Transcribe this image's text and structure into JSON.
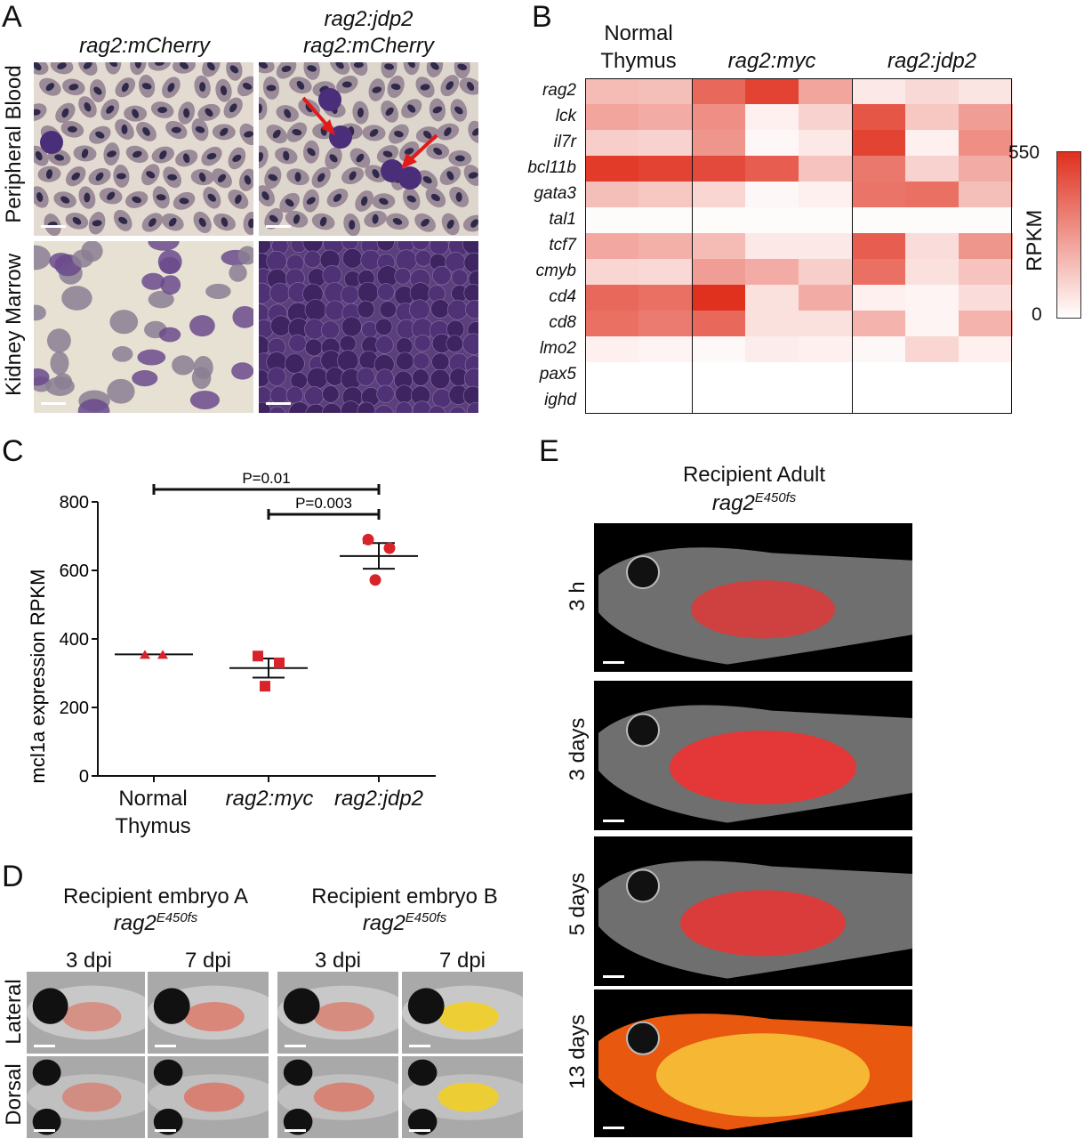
{
  "panels": {
    "A": {
      "letter": "A",
      "col_headers": [
        "rag2:mCherry",
        "rag2:jdp2",
        "rag2:mCherry"
      ],
      "row_labels": [
        "Peripheral Blood",
        "Kidney Marrow"
      ]
    },
    "B": {
      "letter": "B",
      "col_headers": [
        "Normal",
        "Thymus",
        "rag2:myc",
        "rag2:jdp2"
      ],
      "colorbar": {
        "title": "RPKM",
        "max_label": "550",
        "min_label": "0",
        "max": 550,
        "min": 0,
        "color_high": "#e0301e",
        "color_low": "#ffffff"
      }
    },
    "C": {
      "letter": "C",
      "p1": "P=0.01",
      "p2": "P=0.003",
      "xlabels": [
        "Normal",
        "Thymus",
        "rag2:myc",
        "rag2:jdp2"
      ]
    },
    "D": {
      "letter": "D",
      "group_a_title": "Recipient embryo A",
      "group_b_title": "Recipient embryo B",
      "genotype_base": "rag2",
      "genotype_sup": "E450fs",
      "timepoints": [
        "3 dpi",
        "7 dpi",
        "3 dpi",
        "7 dpi"
      ],
      "row_labels": [
        "Lateral",
        "Dorsal"
      ]
    },
    "E": {
      "letter": "E",
      "title": "Recipient Adult",
      "genotype_base": "rag2",
      "genotype_sup": "E450fs",
      "timepoints": [
        "3 h",
        "3 days",
        "5 days",
        "13 days"
      ]
    }
  },
  "heatmap": {
    "genes": [
      "rag2",
      "lck",
      "il7r",
      "bcl11b",
      "gata3",
      "tal1",
      "tcf7",
      "cmyb",
      "cd4",
      "cd8",
      "lmo2",
      "pax5",
      "ighd"
    ],
    "groups": [
      "Normal Thymus",
      "rag2:myc",
      "rag2:jdp2"
    ],
    "values": [
      [
        180,
        170,
        400,
        500,
        240,
        60,
        100,
        70
      ],
      [
        240,
        220,
        300,
        40,
        120,
        450,
        150,
        260
      ],
      [
        130,
        120,
        280,
        20,
        60,
        500,
        40,
        300
      ],
      [
        520,
        500,
        480,
        430,
        160,
        360,
        120,
        220
      ],
      [
        170,
        150,
        110,
        20,
        40,
        370,
        380,
        170
      ],
      [
        10,
        10,
        10,
        10,
        10,
        10,
        10,
        10
      ],
      [
        230,
        210,
        180,
        60,
        60,
        430,
        90,
        280
      ],
      [
        110,
        100,
        260,
        220,
        130,
        380,
        80,
        160
      ],
      [
        400,
        380,
        550,
        80,
        220,
        40,
        30,
        90
      ],
      [
        380,
        350,
        400,
        80,
        80,
        200,
        30,
        200
      ],
      [
        40,
        30,
        15,
        50,
        40,
        20,
        110,
        40
      ],
      [
        0,
        0,
        0,
        0,
        0,
        0,
        0,
        0
      ],
      [
        0,
        0,
        0,
        0,
        0,
        0,
        0,
        0
      ]
    ]
  },
  "chart_data": {
    "type": "scatter",
    "title": "",
    "ylabel": "mcl1a expression RPKM",
    "xlabel": "",
    "categories": [
      "Normal Thymus",
      "rag2:myc",
      "rag2:jdp2"
    ],
    "ylim": [
      0,
      800
    ],
    "yticks": [
      0,
      200,
      400,
      600,
      800
    ],
    "series": [
      {
        "name": "Normal Thymus",
        "marker": "triangle",
        "points": [
          355,
          355
        ],
        "mean": 355,
        "sem_low": 355,
        "sem_high": 357
      },
      {
        "name": "rag2:myc",
        "marker": "square",
        "points": [
          350,
          330,
          262
        ],
        "mean": 315,
        "sem_low": 287,
        "sem_high": 343
      },
      {
        "name": "rag2:jdp2",
        "marker": "circle",
        "points": [
          690,
          665,
          572
        ],
        "mean": 642,
        "sem_low": 605,
        "sem_high": 680
      }
    ],
    "annotations": [
      {
        "text": "P=0.01",
        "from": "Normal Thymus",
        "to": "rag2:jdp2"
      },
      {
        "text": "P=0.003",
        "from": "rag2:myc",
        "to": "rag2:jdp2"
      }
    ],
    "marker_color": "#d8232a"
  }
}
